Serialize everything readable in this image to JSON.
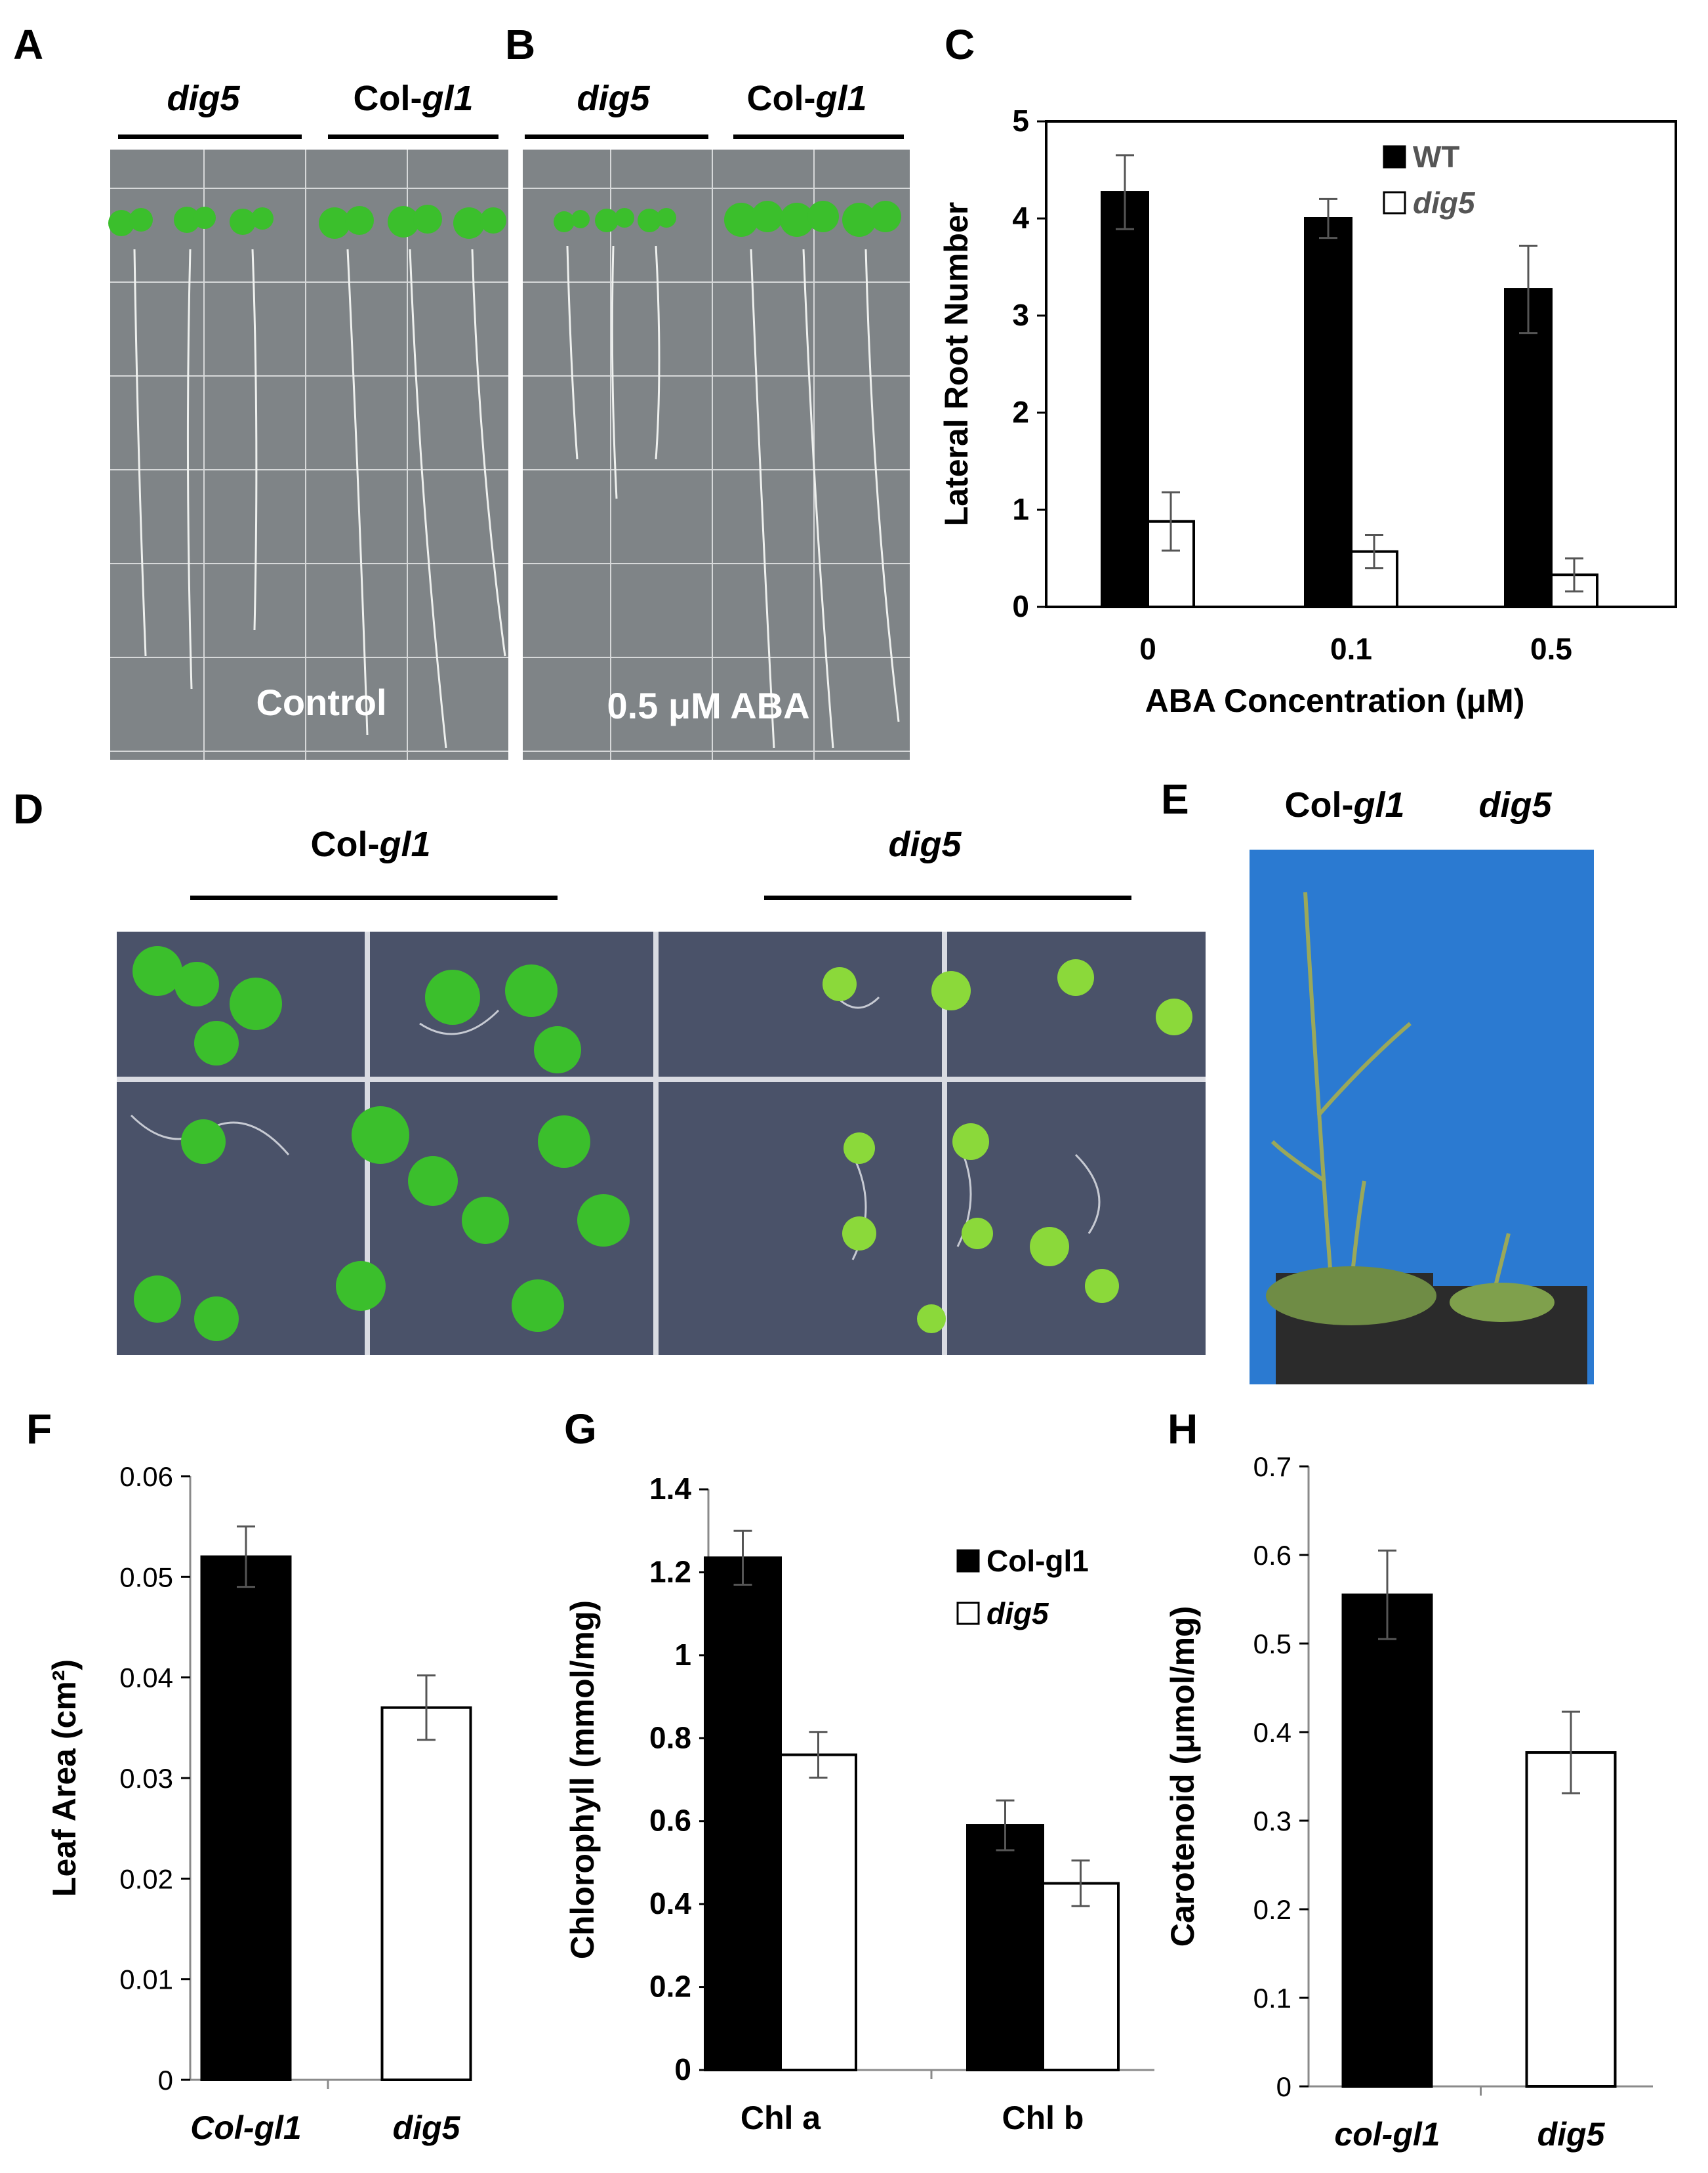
{
  "figure": {
    "panels": {
      "A": {
        "letter": "A",
        "genotype_left": "dig5",
        "genotype_right_prefix": "Col-",
        "genotype_right_suffix": "gl1",
        "condition": "Control"
      },
      "B": {
        "letter": "B",
        "genotype_left": "dig5",
        "genotype_right_prefix": "Col-",
        "genotype_right_suffix": "gl1",
        "condition": "0.5 μM ABA"
      },
      "C": {
        "letter": "C"
      },
      "D": {
        "letter": "D",
        "genotype_left_prefix": "Col-",
        "genotype_left_suffix": "gl1",
        "genotype_right": "dig5"
      },
      "E": {
        "letter": "E",
        "genotype_left_prefix": "Col-",
        "genotype_left_suffix": "gl1",
        "genotype_right": "dig5"
      },
      "F": {
        "letter": "F"
      },
      "G": {
        "letter": "G"
      },
      "H": {
        "letter": "H"
      }
    },
    "colors": {
      "filled_bar": "#000000",
      "open_bar": "#ffffff",
      "plate_gray": "#7f8487",
      "plate_blue": "#4a5269",
      "backdrop_blue": "#2b7ad1",
      "seedling_green": "#3bbf2c"
    }
  },
  "chart_data": [
    {
      "id": "C",
      "type": "bar",
      "categories": [
        "0",
        "0.1",
        "0.5"
      ],
      "series": [
        {
          "name": "WT",
          "values": [
            4.27,
            4.0,
            3.27
          ],
          "errors": [
            0.38,
            0.2,
            0.45
          ],
          "fill": "#000000"
        },
        {
          "name": "dig5",
          "values": [
            0.88,
            0.57,
            0.33
          ],
          "errors": [
            0.3,
            0.17,
            0.17
          ],
          "fill": "#ffffff"
        }
      ],
      "ylim": [
        0,
        5
      ],
      "yticks": [
        "0",
        "1",
        "2",
        "3",
        "4",
        "5"
      ],
      "xlabel": "ABA Concentration (μM)",
      "ylabel": "Lateral Root Number",
      "legend_position": "top-right"
    },
    {
      "id": "F",
      "type": "bar",
      "categories": [
        "Col-gl1",
        "dig5"
      ],
      "values": [
        0.052,
        0.037
      ],
      "errors": [
        0.003,
        0.0032
      ],
      "fills": [
        "#000000",
        "#ffffff"
      ],
      "ylim": [
        0,
        0.06
      ],
      "yticks": [
        "0",
        "0.01",
        "0.02",
        "0.03",
        "0.04",
        "0.05",
        "0.06"
      ],
      "ylabel": "Leaf Area (cm²)"
    },
    {
      "id": "G",
      "type": "bar",
      "categories": [
        "Chl a",
        "Chl b"
      ],
      "series": [
        {
          "name": "Col-gl1",
          "values": [
            1.235,
            0.59
          ],
          "errors": [
            0.065,
            0.06
          ],
          "fill": "#000000"
        },
        {
          "name": "dig5",
          "values": [
            0.76,
            0.45
          ],
          "errors": [
            0.055,
            0.055
          ],
          "fill": "#ffffff"
        }
      ],
      "ylim": [
        0,
        1.4
      ],
      "yticks": [
        "0",
        "0.2",
        "0.4",
        "0.6",
        "0.8",
        "1",
        "1.2",
        "1.4"
      ],
      "ylabel": "Chlorophyll (mmol/mg)",
      "legend_position": "top-right"
    },
    {
      "id": "H",
      "type": "bar",
      "categories": [
        "col-gl1",
        "dig5"
      ],
      "values": [
        0.555,
        0.377
      ],
      "errors": [
        0.05,
        0.046
      ],
      "fills": [
        "#000000",
        "#ffffff"
      ],
      "ylim": [
        0,
        0.7
      ],
      "yticks": [
        "0",
        "0.1",
        "0.2",
        "0.3",
        "0.4",
        "0.5",
        "0.6",
        "0.7"
      ],
      "ylabel": "Carotenoid (μmol/mg)"
    }
  ]
}
